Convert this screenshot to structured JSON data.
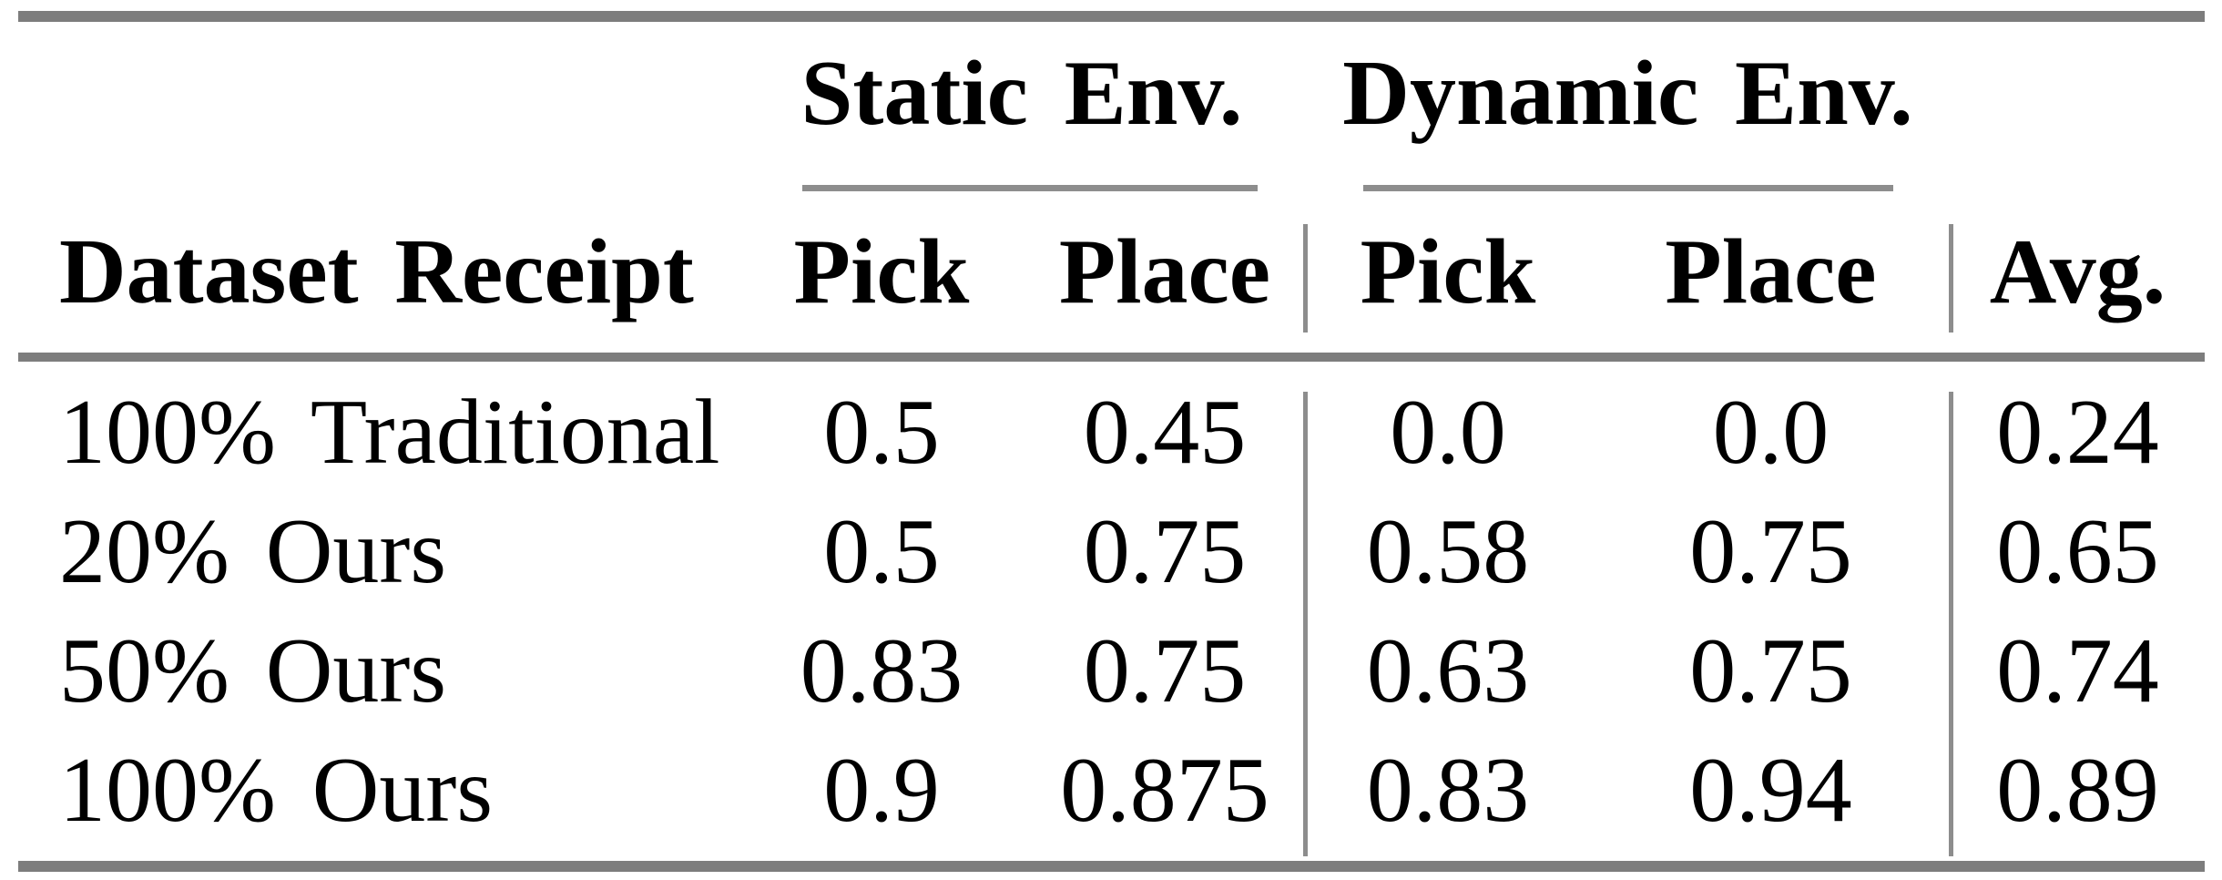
{
  "table": {
    "group_headers": {
      "static": "Static Env.",
      "dynamic": "Dynamic Env."
    },
    "column_headers": {
      "dataset": "Dataset Receipt",
      "static_pick": "Pick",
      "static_place": "Place",
      "dynamic_pick": "Pick",
      "dynamic_place": "Place",
      "avg": "Avg."
    },
    "rows": [
      {
        "dataset": "100% Traditional",
        "static_pick": "0.5",
        "static_place": "0.45",
        "dynamic_pick": "0.0",
        "dynamic_place": "0.0",
        "avg": "0.24"
      },
      {
        "dataset": "20% Ours",
        "static_pick": "0.5",
        "static_place": "0.75",
        "dynamic_pick": "0.58",
        "dynamic_place": "0.75",
        "avg": "0.65"
      },
      {
        "dataset": "50% Ours",
        "static_pick": "0.83",
        "static_place": "0.75",
        "dynamic_pick": "0.63",
        "dynamic_place": "0.75",
        "avg": "0.74"
      },
      {
        "dataset": "100% Ours",
        "static_pick": "0.9",
        "static_place": "0.875",
        "dynamic_pick": "0.83",
        "dynamic_place": "0.94",
        "avg": "0.89"
      }
    ],
    "colors": {
      "heavy_rule": "#7d7d7d",
      "light_rule": "#8d8d8d",
      "text": "#000000",
      "background": "#ffffff"
    }
  }
}
